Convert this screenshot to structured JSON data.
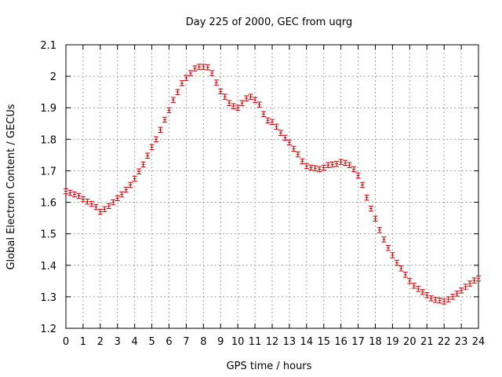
{
  "chart_data": {
    "type": "scatter",
    "title": "Day 225 of 2000, GEC from uqrg",
    "xlabel": "GPS time / hours",
    "ylabel": "Global Electron Content / GECUs",
    "xlim": [
      0,
      24
    ],
    "ylim": [
      1.2,
      2.1
    ],
    "grid": true,
    "x_ticks": [
      "0",
      "1",
      "2",
      "3",
      "4",
      "5",
      "6",
      "7",
      "8",
      "9",
      "10",
      "11",
      "12",
      "13",
      "14",
      "15",
      "16",
      "17",
      "18",
      "19",
      "20",
      "21",
      "22",
      "23",
      "24"
    ],
    "y_ticks": [
      "1.2",
      "1.3",
      "1.4",
      "1.5",
      "1.6",
      "1.7",
      "1.8",
      "1.9",
      "2",
      "2.1"
    ],
    "point_color": "#cc0000",
    "error": 0.008,
    "series": [
      {
        "x": [
          0,
          0.25,
          0.5,
          0.75,
          1,
          1.25,
          1.5,
          1.75,
          2,
          2.25,
          2.5,
          2.75,
          3,
          3.25,
          3.5,
          3.75,
          4,
          4.25,
          4.5,
          4.75,
          5,
          5.25,
          5.5,
          5.75,
          6,
          6.25,
          6.5,
          6.75,
          7,
          7.25,
          7.5,
          7.75,
          8,
          8.25,
          8.5,
          8.75,
          9,
          9.25,
          9.5,
          9.75,
          10,
          10.25,
          10.5,
          10.75,
          11,
          11.25,
          11.5,
          11.75,
          12,
          12.25,
          12.5,
          12.75,
          13,
          13.25,
          13.5,
          13.75,
          14,
          14.25,
          14.5,
          14.75,
          15,
          15.25,
          15.5,
          15.75,
          16,
          16.25,
          16.5,
          16.75,
          17,
          17.25,
          17.5,
          17.75,
          18,
          18.25,
          18.5,
          18.75,
          19,
          19.25,
          19.5,
          19.75,
          20,
          20.25,
          20.5,
          20.75,
          21,
          21.25,
          21.5,
          21.75,
          22,
          22.25,
          22.5,
          22.75,
          23,
          23.25,
          23.5,
          23.75,
          24
        ],
        "y": [
          1.635,
          1.63,
          1.625,
          1.62,
          1.61,
          1.602,
          1.595,
          1.585,
          1.57,
          1.578,
          1.588,
          1.6,
          1.613,
          1.625,
          1.64,
          1.655,
          1.675,
          1.698,
          1.72,
          1.748,
          1.775,
          1.8,
          1.83,
          1.862,
          1.892,
          1.925,
          1.95,
          1.978,
          1.995,
          2.01,
          2.025,
          2.03,
          2.03,
          2.028,
          2.01,
          1.98,
          1.952,
          1.935,
          1.915,
          1.905,
          1.9,
          1.915,
          1.93,
          1.935,
          1.925,
          1.91,
          1.88,
          1.86,
          1.855,
          1.84,
          1.82,
          1.805,
          1.79,
          1.77,
          1.752,
          1.73,
          1.715,
          1.71,
          1.708,
          1.705,
          1.71,
          1.718,
          1.72,
          1.722,
          1.728,
          1.725,
          1.718,
          1.705,
          1.685,
          1.655,
          1.615,
          1.58,
          1.548,
          1.512,
          1.482,
          1.455,
          1.432,
          1.408,
          1.39,
          1.37,
          1.35,
          1.335,
          1.325,
          1.315,
          1.305,
          1.295,
          1.29,
          1.288,
          1.285,
          1.292,
          1.3,
          1.31,
          1.32,
          1.332,
          1.342,
          1.352,
          1.358
        ]
      }
    ]
  }
}
